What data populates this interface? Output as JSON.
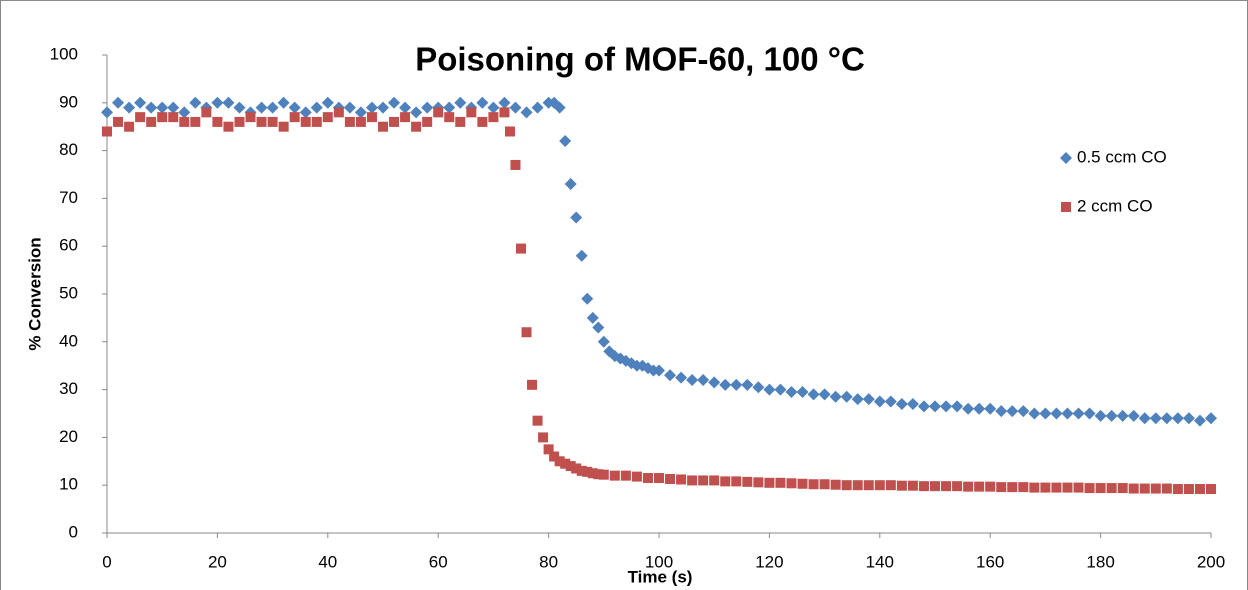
{
  "chart_data": {
    "type": "scatter",
    "title": "Poisoning of MOF-60, 100 °C",
    "x_label": "Time (s)",
    "y_label": "% Conversion",
    "xlim": [
      0,
      200
    ],
    "xticks": [
      0,
      20,
      40,
      60,
      80,
      100,
      120,
      140,
      160,
      180,
      200
    ],
    "ylim": [
      0,
      100
    ],
    "yticks": [
      0,
      10,
      20,
      30,
      40,
      50,
      60,
      70,
      80,
      90,
      100
    ],
    "grid": false,
    "legend": "right",
    "series": [
      {
        "name": "0.5 ccm CO",
        "color": "#4f81bd",
        "marker": "diamond",
        "x": [
          0,
          2,
          4,
          6,
          8,
          10,
          12,
          14,
          16,
          18,
          20,
          22,
          24,
          26,
          28,
          30,
          32,
          34,
          36,
          38,
          40,
          42,
          44,
          46,
          48,
          50,
          52,
          54,
          56,
          58,
          60,
          62,
          64,
          66,
          68,
          70,
          72,
          74,
          76,
          78,
          80,
          81,
          82,
          83,
          84,
          85,
          86,
          87,
          88,
          89,
          90,
          91,
          92,
          93,
          94,
          95,
          96,
          97,
          98,
          99,
          100,
          102,
          104,
          106,
          108,
          110,
          112,
          114,
          116,
          118,
          120,
          122,
          124,
          126,
          128,
          130,
          132,
          134,
          136,
          138,
          140,
          142,
          144,
          146,
          148,
          150,
          152,
          154,
          156,
          158,
          160,
          162,
          164,
          166,
          168,
          170,
          172,
          174,
          176,
          178,
          180,
          182,
          184,
          186,
          188,
          190,
          192,
          194,
          196,
          198,
          200
        ],
        "values": [
          88,
          90,
          89,
          90,
          89,
          89,
          89,
          88,
          90,
          89,
          90,
          90,
          89,
          88,
          89,
          89,
          90,
          89,
          88,
          89,
          90,
          89,
          89,
          88,
          89,
          89,
          90,
          89,
          88,
          89,
          89,
          89,
          90,
          89,
          90,
          89,
          90,
          89,
          88,
          89,
          90,
          90,
          89,
          82,
          73,
          66,
          58,
          49,
          45,
          43,
          40,
          38,
          37,
          36.5,
          36,
          35.5,
          35,
          35,
          34.5,
          34,
          34,
          33,
          32.5,
          32,
          32,
          31.5,
          31,
          31,
          31,
          30.5,
          30,
          30,
          29.5,
          29.5,
          29,
          29,
          28.5,
          28.5,
          28,
          28,
          27.5,
          27.5,
          27,
          27,
          26.5,
          26.5,
          26.5,
          26.5,
          26,
          26,
          26,
          25.5,
          25.5,
          25.5,
          25,
          25,
          25,
          25,
          25,
          25,
          24.5,
          24.5,
          24.5,
          24.5,
          24,
          24,
          24,
          24,
          24,
          23.5,
          24
        ]
      },
      {
        "name": "2 ccm CO",
        "color": "#c0504d",
        "marker": "square",
        "x": [
          0,
          2,
          4,
          6,
          8,
          10,
          12,
          14,
          16,
          18,
          20,
          22,
          24,
          26,
          28,
          30,
          32,
          34,
          36,
          38,
          40,
          42,
          44,
          46,
          48,
          50,
          52,
          54,
          56,
          58,
          60,
          62,
          64,
          66,
          68,
          70,
          72,
          73,
          74,
          75,
          76,
          77,
          78,
          79,
          80,
          81,
          82,
          83,
          84,
          85,
          86,
          87,
          88,
          89,
          90,
          92,
          94,
          96,
          98,
          100,
          102,
          104,
          106,
          108,
          110,
          112,
          114,
          116,
          118,
          120,
          122,
          124,
          126,
          128,
          130,
          132,
          134,
          136,
          138,
          140,
          142,
          144,
          146,
          148,
          150,
          152,
          154,
          156,
          158,
          160,
          162,
          164,
          166,
          168,
          170,
          172,
          174,
          176,
          178,
          180,
          182,
          184,
          186,
          188,
          190,
          192,
          194,
          196,
          198,
          200
        ],
        "values": [
          84,
          86,
          85,
          87,
          86,
          87,
          87,
          86,
          86,
          88,
          86,
          85,
          86,
          87,
          86,
          86,
          85,
          87,
          86,
          86,
          87,
          88,
          86,
          86,
          87,
          85,
          86,
          87,
          85,
          86,
          88,
          87,
          86,
          88,
          86,
          87,
          88,
          84,
          77,
          59.5,
          42,
          31,
          23.5,
          20,
          17.5,
          16,
          15,
          14.5,
          14,
          13.5,
          13,
          12.8,
          12.5,
          12.3,
          12.2,
          12,
          12,
          11.8,
          11.5,
          11.5,
          11.3,
          11.2,
          11,
          11,
          11,
          10.8,
          10.8,
          10.7,
          10.6,
          10.5,
          10.5,
          10.4,
          10.3,
          10.2,
          10.2,
          10.1,
          10,
          10,
          10,
          10,
          10,
          9.9,
          9.9,
          9.8,
          9.8,
          9.8,
          9.8,
          9.7,
          9.7,
          9.7,
          9.6,
          9.6,
          9.6,
          9.5,
          9.5,
          9.5,
          9.5,
          9.5,
          9.4,
          9.4,
          9.4,
          9.4,
          9.3,
          9.3,
          9.3,
          9.3,
          9.2,
          9.2,
          9.2,
          9.2
        ]
      }
    ]
  }
}
